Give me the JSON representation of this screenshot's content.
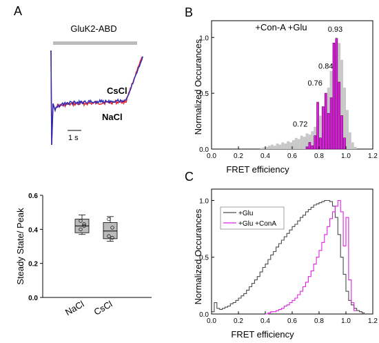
{
  "panels": {
    "a": "A",
    "b": "B",
    "c": "C"
  },
  "colors": {
    "cscl": "#e8262b",
    "nacl": "#2b2bb8",
    "glu_only": "#4a4a4a",
    "glu_cona": "#e020e0",
    "gray_fill": "#c8c8c8",
    "magenta_fill": "#e020e0",
    "bar": "#bbbbbb"
  },
  "chart_data": [
    {
      "type": "line",
      "panel": "A",
      "title": "GluK2-ABD",
      "series": [
        {
          "name": "CsCl",
          "color": "#e8262b"
        },
        {
          "name": "NaCl",
          "color": "#2b2bb8"
        }
      ],
      "scalebar": "1 s"
    },
    {
      "type": "box",
      "panel": "A",
      "ylabel": "Steady State/ Peak",
      "ylim": [
        0.0,
        0.6
      ],
      "yticks": [
        "0.0",
        "0.2",
        "0.4",
        "0.6"
      ],
      "categories": [
        "NaCl",
        "CsCl"
      ],
      "boxes": [
        {
          "category": "NaCl",
          "min": 0.37,
          "q1": 0.38,
          "median": 0.42,
          "q3": 0.46,
          "max": 0.485,
          "points": [
            0.45,
            0.42,
            0.4,
            0.43
          ]
        },
        {
          "category": "CsCl",
          "min": 0.33,
          "q1": 0.345,
          "median": 0.39,
          "q3": 0.44,
          "max": 0.475,
          "points": [
            0.46,
            0.41,
            0.36,
            0.35
          ]
        }
      ]
    },
    {
      "type": "bar",
      "panel": "B",
      "title": "+Con-A  +Glu",
      "xlabel": "FRET efficiency",
      "ylabel": "Normalized Occurances",
      "xlim": [
        0.0,
        1.2
      ],
      "ylim": [
        0.0,
        1.15
      ],
      "xticks": [
        "0.0",
        "0.2",
        "0.4",
        "0.6",
        "0.8",
        "1.0",
        "1.2"
      ],
      "yticks": [
        "0.0",
        "0.5",
        "1.0"
      ],
      "bin_width": 0.02,
      "gray_bins": [
        {
          "x": 0.36,
          "y": 0.01
        },
        {
          "x": 0.38,
          "y": 0.015
        },
        {
          "x": 0.4,
          "y": 0.02
        },
        {
          "x": 0.42,
          "y": 0.03
        },
        {
          "x": 0.44,
          "y": 0.04
        },
        {
          "x": 0.46,
          "y": 0.03
        },
        {
          "x": 0.48,
          "y": 0.05
        },
        {
          "x": 0.5,
          "y": 0.04
        },
        {
          "x": 0.52,
          "y": 0.06
        },
        {
          "x": 0.54,
          "y": 0.05
        },
        {
          "x": 0.56,
          "y": 0.07
        },
        {
          "x": 0.58,
          "y": 0.06
        },
        {
          "x": 0.6,
          "y": 0.08
        },
        {
          "x": 0.62,
          "y": 0.1
        },
        {
          "x": 0.64,
          "y": 0.09
        },
        {
          "x": 0.66,
          "y": 0.12
        },
        {
          "x": 0.68,
          "y": 0.11
        },
        {
          "x": 0.7,
          "y": 0.14
        },
        {
          "x": 0.72,
          "y": 0.13
        },
        {
          "x": 0.74,
          "y": 0.16
        },
        {
          "x": 0.76,
          "y": 0.2
        },
        {
          "x": 0.78,
          "y": 0.26
        },
        {
          "x": 0.8,
          "y": 0.3
        },
        {
          "x": 0.82,
          "y": 0.36
        },
        {
          "x": 0.84,
          "y": 0.42
        },
        {
          "x": 0.86,
          "y": 0.55
        },
        {
          "x": 0.88,
          "y": 0.7
        },
        {
          "x": 0.9,
          "y": 0.85
        },
        {
          "x": 0.92,
          "y": 1.0
        },
        {
          "x": 0.94,
          "y": 0.95
        },
        {
          "x": 0.96,
          "y": 0.8
        },
        {
          "x": 0.98,
          "y": 0.55
        },
        {
          "x": 1.0,
          "y": 0.35
        },
        {
          "x": 1.02,
          "y": 0.15
        },
        {
          "x": 1.04,
          "y": 0.06
        },
        {
          "x": 1.06,
          "y": 0.02
        }
      ],
      "magenta_bins": [
        {
          "x": 0.7,
          "y": 0.02
        },
        {
          "x": 0.72,
          "y": 0.06
        },
        {
          "x": 0.74,
          "y": 0.03
        },
        {
          "x": 0.76,
          "y": 0.12
        },
        {
          "x": 0.78,
          "y": 0.42
        },
        {
          "x": 0.8,
          "y": 0.1
        },
        {
          "x": 0.82,
          "y": 0.38
        },
        {
          "x": 0.84,
          "y": 0.5
        },
        {
          "x": 0.86,
          "y": 0.32
        },
        {
          "x": 0.88,
          "y": 0.46
        },
        {
          "x": 0.9,
          "y": 0.95
        },
        {
          "x": 0.92,
          "y": 0.99
        },
        {
          "x": 0.94,
          "y": 0.6
        },
        {
          "x": 0.96,
          "y": 0.3
        },
        {
          "x": 0.98,
          "y": 0.1
        }
      ],
      "annotations": [
        {
          "text": "0.72",
          "x": 0.66,
          "y": 0.2
        },
        {
          "text": "0.76",
          "x": 0.77,
          "y": 0.57
        },
        {
          "text": "0.84",
          "x": 0.85,
          "y": 0.72
        },
        {
          "text": "0.93",
          "x": 0.92,
          "y": 1.05
        }
      ]
    },
    {
      "type": "line",
      "panel": "C",
      "xlabel": "FRET efficiency",
      "ylabel": "Normalized Occurances",
      "xlim": [
        0.0,
        1.2
      ],
      "ylim": [
        0.0,
        1.1
      ],
      "xticks": [
        "0.0",
        "0.2",
        "0.4",
        "0.6",
        "0.8",
        "1.0",
        "1.2"
      ],
      "yticks": [
        "0.0",
        "0.5",
        "1.0"
      ],
      "legend": "top-left",
      "series": [
        {
          "name": "+Glu",
          "color": "#4a4a4a",
          "x": [
            0.0,
            0.02,
            0.04,
            0.06,
            0.08,
            0.1,
            0.12,
            0.14,
            0.16,
            0.18,
            0.2,
            0.22,
            0.24,
            0.26,
            0.28,
            0.3,
            0.32,
            0.34,
            0.36,
            0.38,
            0.4,
            0.42,
            0.44,
            0.46,
            0.48,
            0.5,
            0.52,
            0.54,
            0.56,
            0.58,
            0.6,
            0.62,
            0.64,
            0.66,
            0.68,
            0.7,
            0.72,
            0.74,
            0.76,
            0.78,
            0.8,
            0.82,
            0.84,
            0.86,
            0.88,
            0.9,
            0.92,
            0.94,
            0.96,
            0.98,
            1.0,
            1.02,
            1.04,
            1.06,
            1.08,
            1.1,
            1.12
          ],
          "y": [
            0.02,
            0.1,
            0.05,
            0.04,
            0.05,
            0.06,
            0.07,
            0.09,
            0.1,
            0.12,
            0.14,
            0.16,
            0.18,
            0.21,
            0.24,
            0.27,
            0.3,
            0.33,
            0.37,
            0.41,
            0.44,
            0.48,
            0.52,
            0.55,
            0.59,
            0.62,
            0.65,
            0.68,
            0.71,
            0.74,
            0.77,
            0.79,
            0.82,
            0.85,
            0.87,
            0.9,
            0.92,
            0.94,
            0.96,
            0.97,
            0.98,
            0.99,
            1.0,
            1.0,
            0.99,
            0.95,
            0.85,
            0.7,
            0.5,
            0.35,
            0.2,
            0.12,
            0.08,
            0.05,
            0.03,
            0.02,
            0.01
          ]
        },
        {
          "name": "+Glu +ConA",
          "color": "#e020e0",
          "x": [
            0.4,
            0.42,
            0.44,
            0.46,
            0.48,
            0.5,
            0.52,
            0.54,
            0.56,
            0.58,
            0.6,
            0.62,
            0.64,
            0.66,
            0.68,
            0.7,
            0.72,
            0.74,
            0.76,
            0.78,
            0.8,
            0.82,
            0.84,
            0.86,
            0.88,
            0.9,
            0.92,
            0.94,
            0.96,
            0.98,
            1.0,
            1.02,
            1.04,
            1.06
          ],
          "y": [
            0.0,
            0.01,
            0.02,
            0.02,
            0.03,
            0.04,
            0.05,
            0.07,
            0.08,
            0.1,
            0.12,
            0.14,
            0.17,
            0.2,
            0.24,
            0.28,
            0.33,
            0.38,
            0.44,
            0.5,
            0.56,
            0.63,
            0.7,
            0.77,
            0.84,
            0.9,
            0.95,
            1.0,
            0.9,
            0.6,
            0.85,
            0.3,
            0.1,
            0.03
          ]
        }
      ]
    }
  ]
}
